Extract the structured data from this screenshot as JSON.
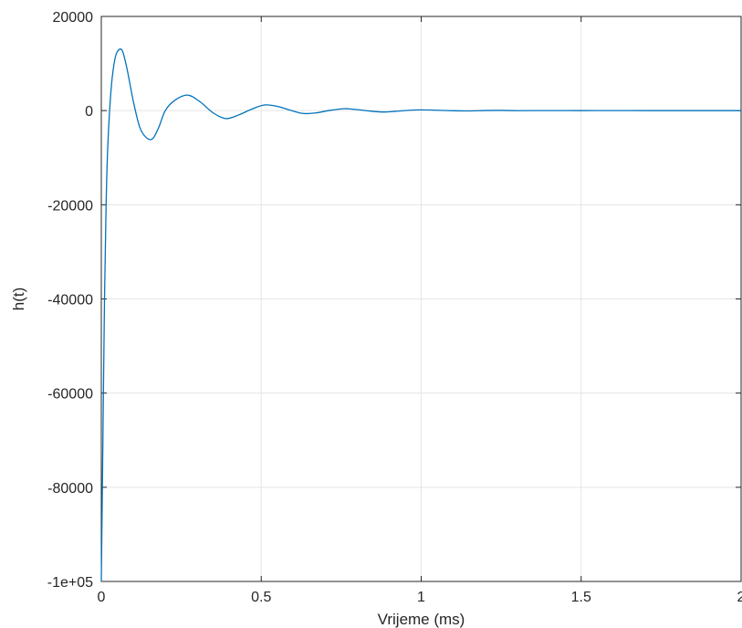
{
  "chart_data": {
    "type": "line",
    "title": "",
    "xlabel": "Vrijeme (ms)",
    "ylabel": "h(t)",
    "xlim": [
      0,
      2
    ],
    "ylim": [
      -100000,
      20000
    ],
    "x_ticks": [
      0,
      0.5,
      1,
      1.5,
      2
    ],
    "x_tick_labels": [
      "0",
      "0.5",
      "1",
      "1.5",
      "2"
    ],
    "y_ticks": [
      -100000,
      -80000,
      -60000,
      -40000,
      -20000,
      0,
      20000
    ],
    "y_tick_labels": [
      "-1e+05",
      "-80000",
      "-60000",
      "-40000",
      "-20000",
      "0",
      "20000"
    ],
    "grid": true,
    "series": [
      {
        "color": "#0072BD",
        "x": [
          0,
          0.005,
          0.01,
          0.015,
          0.02,
          0.03,
          0.04,
          0.05,
          0.065,
          0.08,
          0.1,
          0.12,
          0.14,
          0.16,
          0.18,
          0.2,
          0.23,
          0.27,
          0.31,
          0.35,
          0.39,
          0.43,
          0.47,
          0.51,
          0.55,
          0.59,
          0.63,
          0.67,
          0.71,
          0.76,
          0.8,
          0.84,
          0.88,
          0.92,
          0.96,
          1.0,
          1.05,
          1.1,
          1.15,
          1.2,
          1.25,
          1.3,
          1.4,
          1.5,
          1.6,
          1.7,
          1.8,
          1.9,
          2.0
        ],
        "y": [
          -100000,
          -70000,
          -40000,
          -20000,
          -8000,
          4000,
          10000,
          12500,
          12800,
          9000,
          2000,
          -3500,
          -5700,
          -6000,
          -3500,
          0,
          2200,
          3300,
          1800,
          -500,
          -1700,
          -900,
          300,
          1200,
          900,
          100,
          -600,
          -500,
          0,
          400,
          200,
          -100,
          -300,
          -150,
          50,
          150,
          80,
          -30,
          -60,
          20,
          40,
          -10,
          10,
          0,
          5,
          0,
          0,
          0,
          0
        ]
      }
    ]
  }
}
